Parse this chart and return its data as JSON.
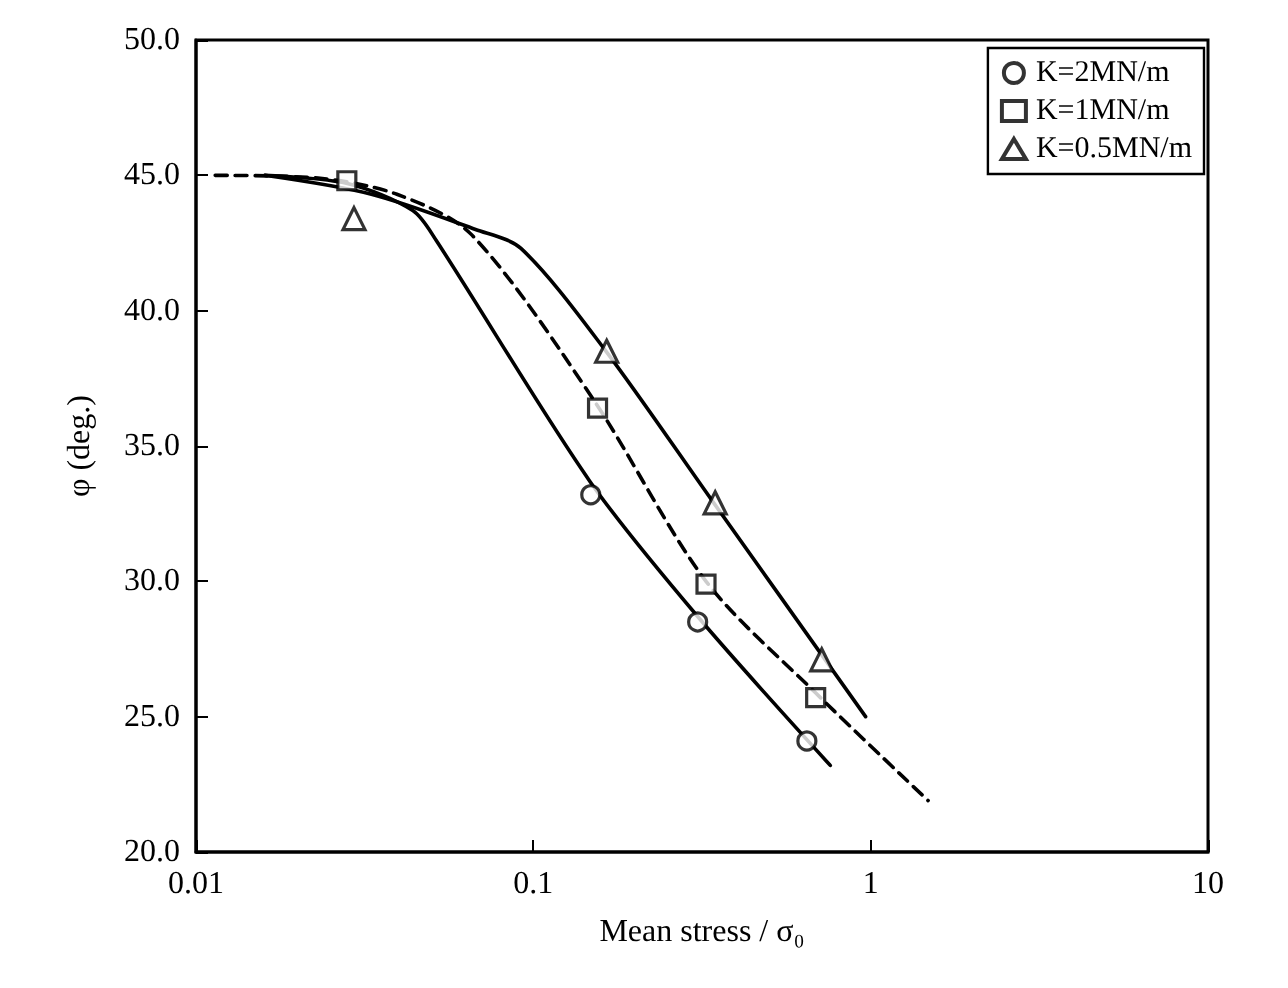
{
  "chart_data": {
    "type": "scatter",
    "xlabel": "Mean stress / σ₀",
    "ylabel": "φ (deg.)",
    "log": "x",
    "xlim": [
      0.01,
      10
    ],
    "xticks": [
      0.01,
      0.1,
      1,
      10
    ],
    "ylim": [
      20,
      50
    ],
    "yticks": [
      {
        "value": 20,
        "label": "20.0"
      },
      {
        "value": 25,
        "label": "25.0"
      },
      {
        "value": 30,
        "label": "30.0"
      },
      {
        "value": 35,
        "label": "35.0"
      },
      {
        "value": 40,
        "label": "40.0"
      },
      {
        "value": 45,
        "label": "45.0"
      },
      {
        "value": 50,
        "label": "50.0"
      }
    ],
    "grid": false,
    "legend": "top right",
    "series": [
      {
        "name": "K=2MN/m",
        "color": "#000000",
        "marker": "circle",
        "x": [
          0.148,
          0.307,
          0.647
        ],
        "values": [
          33.2,
          28.5,
          24.1
        ]
      },
      {
        "name": "K=1MN/m",
        "color": "#000000",
        "marker": "square",
        "x": [
          0.028,
          0.155,
          0.325,
          0.687
        ],
        "values": [
          44.8,
          36.4,
          29.9,
          25.7
        ]
      },
      {
        "name": "K=0.5MN/m",
        "color": "#000000",
        "marker": "triangle",
        "x": [
          0.0294,
          0.165,
          0.346,
          0.716
        ],
        "values": [
          43.4,
          38.5,
          32.9,
          27.1
        ]
      },
      {
        "type": "line",
        "color": "#000000",
        "line_style": "solid",
        "marker": "none",
        "x": [
          0.016,
          0.0281,
          0.0439,
          0.0515,
          0.147,
          0.307,
          0.759
        ],
        "values": [
          45,
          44.7,
          43.7,
          42.6,
          33.7,
          28.7,
          23.2
        ]
      },
      {
        "type": "line",
        "color": "#000000",
        "line_style": "dashed",
        "marker": "none",
        "x": [
          0.0114,
          0.023,
          0.0394,
          0.0657,
          0.151,
          0.325,
          0.684,
          1.48
        ],
        "values": [
          45,
          44.9,
          44.3,
          42.8,
          36.7,
          30,
          25.9,
          21.9
        ]
      },
      {
        "type": "line",
        "color": "#000000",
        "line_style": "solid",
        "marker": "none",
        "x": [
          0.016,
          0.0331,
          0.0674,
          0.0919,
          0.162,
          0.338,
          0.966
        ],
        "values": [
          45,
          44.3,
          43,
          42.3,
          38.6,
          33,
          25
        ]
      }
    ]
  }
}
